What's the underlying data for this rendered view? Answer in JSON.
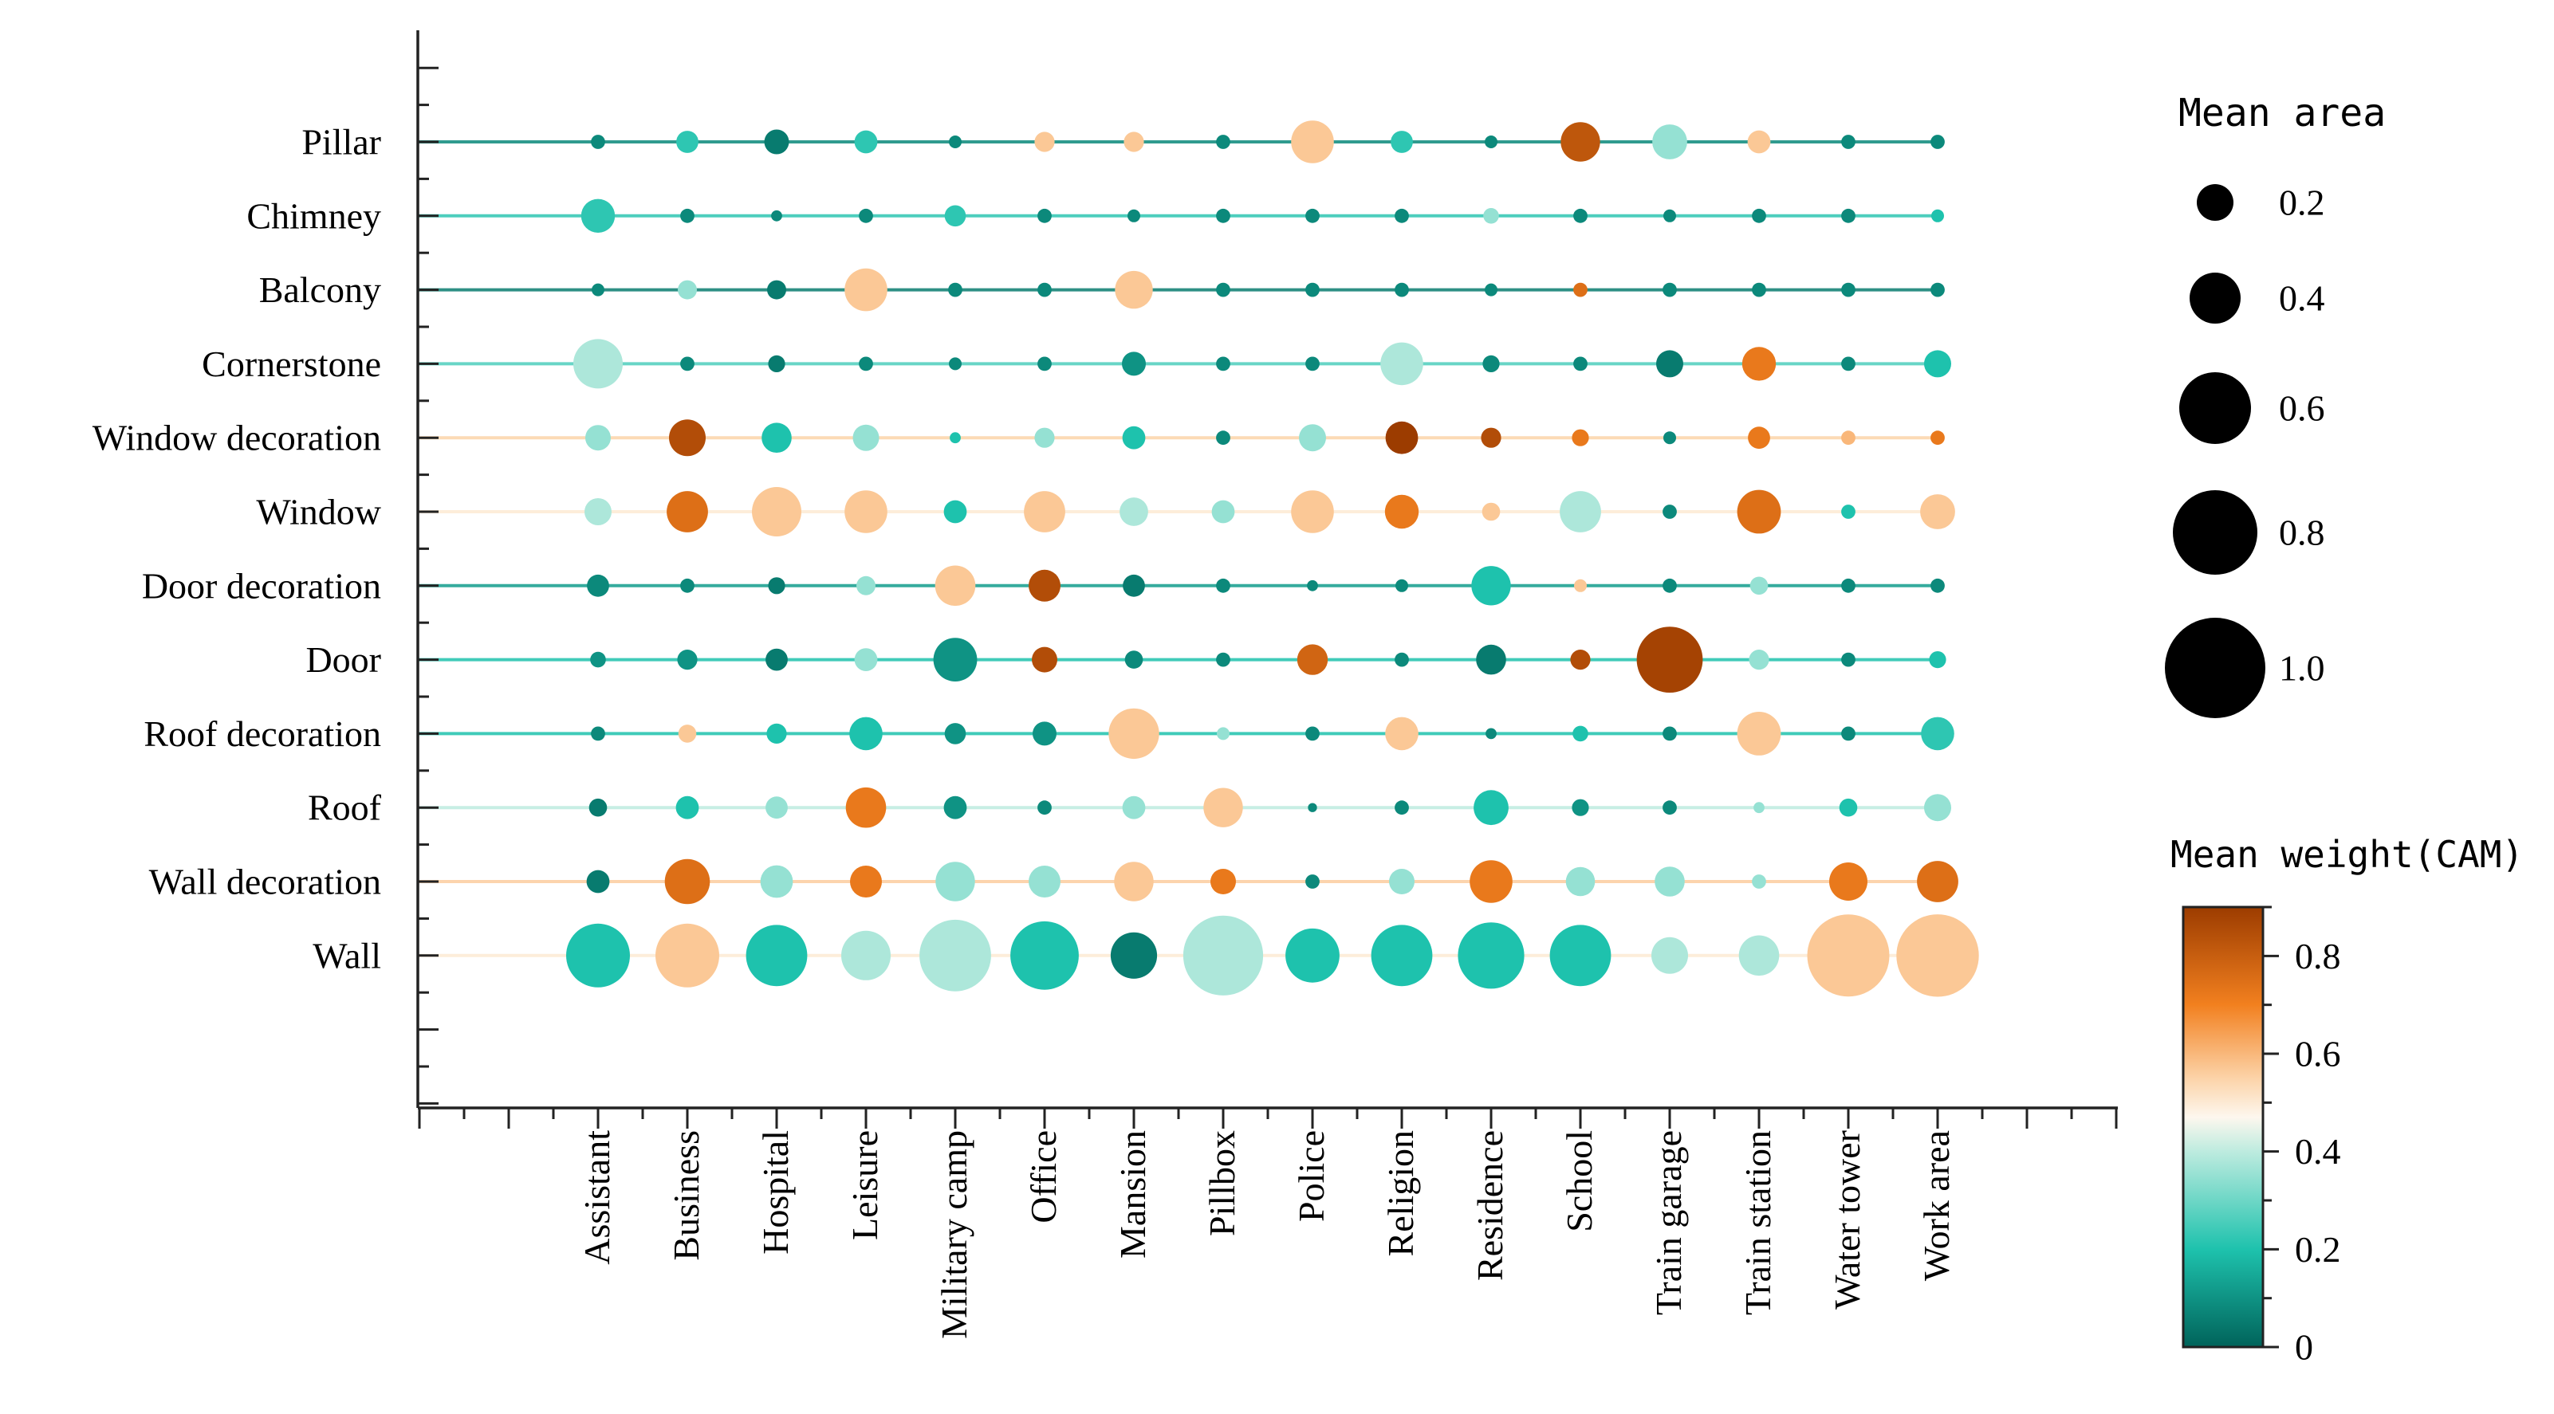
{
  "chart_data": {
    "type": "scatter",
    "subtype": "bubble-matrix",
    "x_categories": [
      "Assistant",
      "Business",
      "Hospital",
      "Leisure",
      "Military camp",
      "Office",
      "Mansion",
      "Pillbox",
      "Police",
      "Religion",
      "Residence",
      "School",
      "Train garage",
      "Train station",
      "Water tower",
      "Work area"
    ],
    "y_categories": [
      "Pillar",
      "Chimney",
      "Balcony",
      "Cornerstone",
      "Window decoration",
      "Window",
      "Door decoration",
      "Door",
      "Roof decoration",
      "Roof",
      "Wall decoration",
      "Wall"
    ],
    "size_legend": {
      "title": "Mean area",
      "values": [
        0.2,
        0.4,
        0.6,
        0.8,
        1.0
      ],
      "labels": [
        "0.2",
        "0.4",
        "0.6",
        "0.8",
        "1.0"
      ]
    },
    "color_legend": {
      "title": "Mean weight(CAM)",
      "range": [
        0,
        0.9
      ],
      "ticks": [
        0,
        0.2,
        0.4,
        0.6,
        0.8
      ],
      "tick_labels": [
        "0",
        "0.2",
        "0.4",
        "0.6",
        "0.8"
      ],
      "stops": [
        {
          "v": 0.0,
          "c": "#00635a"
        },
        {
          "v": 0.2,
          "c": "#1ec2ad"
        },
        {
          "v": 0.4,
          "c": "#bdebdf"
        },
        {
          "v": 0.47,
          "c": "#fdf7ee"
        },
        {
          "v": 0.55,
          "c": "#fcd3a8"
        },
        {
          "v": 0.7,
          "c": "#f2801f"
        },
        {
          "v": 0.9,
          "c": "#9c3c00"
        }
      ]
    },
    "row_line_weights": [
      0.08,
      0.22,
      0.05,
      0.26,
      0.55,
      0.5,
      0.12,
      0.2,
      0.2,
      0.4,
      0.56,
      0.5
    ],
    "cells": {
      "area": [
        [
          0.05,
          0.12,
          0.15,
          0.13,
          0.04,
          0.1,
          0.1,
          0.05,
          0.45,
          0.12,
          0.04,
          0.38,
          0.3,
          0.13,
          0.05,
          0.05
        ],
        [
          0.28,
          0.05,
          0.03,
          0.05,
          0.11,
          0.05,
          0.04,
          0.05,
          0.05,
          0.05,
          0.06,
          0.05,
          0.04,
          0.05,
          0.05,
          0.04
        ],
        [
          0.04,
          0.09,
          0.09,
          0.45,
          0.05,
          0.05,
          0.35,
          0.05,
          0.05,
          0.05,
          0.04,
          0.05,
          0.05,
          0.05,
          0.05,
          0.05
        ],
        [
          0.6,
          0.05,
          0.07,
          0.05,
          0.04,
          0.05,
          0.14,
          0.05,
          0.05,
          0.45,
          0.07,
          0.05,
          0.18,
          0.28,
          0.05,
          0.18
        ],
        [
          0.16,
          0.33,
          0.22,
          0.17,
          0.03,
          0.1,
          0.13,
          0.05,
          0.18,
          0.26,
          0.1,
          0.07,
          0.04,
          0.12,
          0.05,
          0.05
        ],
        [
          0.18,
          0.42,
          0.6,
          0.45,
          0.13,
          0.42,
          0.2,
          0.13,
          0.45,
          0.28,
          0.08,
          0.42,
          0.05,
          0.47,
          0.05,
          0.3
        ],
        [
          0.12,
          0.05,
          0.07,
          0.09,
          0.4,
          0.25,
          0.12,
          0.05,
          0.03,
          0.04,
          0.38,
          0.04,
          0.05,
          0.08,
          0.05,
          0.05
        ],
        [
          0.06,
          0.1,
          0.12,
          0.13,
          0.47,
          0.16,
          0.08,
          0.05,
          0.23,
          0.05,
          0.22,
          0.1,
          1.07,
          0.1,
          0.05,
          0.07
        ],
        [
          0.05,
          0.08,
          0.1,
          0.27,
          0.11,
          0.14,
          0.63,
          0.04,
          0.05,
          0.27,
          0.03,
          0.06,
          0.05,
          0.47,
          0.05,
          0.27
        ],
        [
          0.08,
          0.13,
          0.12,
          0.4,
          0.13,
          0.05,
          0.13,
          0.38,
          0.02,
          0.05,
          0.3,
          0.07,
          0.05,
          0.03,
          0.08,
          0.18
        ],
        [
          0.13,
          0.5,
          0.26,
          0.25,
          0.38,
          0.25,
          0.38,
          0.16,
          0.05,
          0.16,
          0.45,
          0.21,
          0.22,
          0.05,
          0.36,
          0.42
        ],
        [
          1.0,
          1.0,
          0.92,
          0.6,
          1.26,
          1.15,
          0.53,
          1.57,
          0.72,
          0.92,
          1.08,
          0.92,
          0.33,
          0.4,
          1.66,
          1.67
        ]
      ],
      "weight": [
        [
          0.08,
          0.22,
          0.05,
          0.22,
          0.08,
          0.57,
          0.57,
          0.08,
          0.57,
          0.22,
          0.08,
          0.82,
          0.35,
          0.57,
          0.08,
          0.08
        ],
        [
          0.22,
          0.08,
          0.08,
          0.08,
          0.22,
          0.08,
          0.08,
          0.08,
          0.08,
          0.08,
          0.35,
          0.08,
          0.08,
          0.08,
          0.08,
          0.2
        ],
        [
          0.08,
          0.35,
          0.05,
          0.57,
          0.08,
          0.08,
          0.57,
          0.08,
          0.08,
          0.08,
          0.08,
          0.75,
          0.08,
          0.08,
          0.08,
          0.08
        ],
        [
          0.38,
          0.08,
          0.05,
          0.08,
          0.08,
          0.08,
          0.1,
          0.08,
          0.08,
          0.38,
          0.08,
          0.08,
          0.05,
          0.72,
          0.08,
          0.2
        ],
        [
          0.35,
          0.85,
          0.2,
          0.35,
          0.2,
          0.35,
          0.2,
          0.08,
          0.35,
          0.9,
          0.85,
          0.72,
          0.08,
          0.72,
          0.6,
          0.72
        ],
        [
          0.38,
          0.75,
          0.57,
          0.57,
          0.2,
          0.57,
          0.38,
          0.35,
          0.57,
          0.72,
          0.57,
          0.38,
          0.08,
          0.75,
          0.2,
          0.57
        ],
        [
          0.08,
          0.08,
          0.05,
          0.35,
          0.57,
          0.85,
          0.05,
          0.08,
          0.08,
          0.08,
          0.2,
          0.57,
          0.08,
          0.35,
          0.08,
          0.08
        ],
        [
          0.1,
          0.1,
          0.05,
          0.35,
          0.1,
          0.85,
          0.08,
          0.08,
          0.78,
          0.08,
          0.05,
          0.85,
          0.88,
          0.35,
          0.08,
          0.2
        ],
        [
          0.08,
          0.57,
          0.2,
          0.2,
          0.1,
          0.1,
          0.57,
          0.35,
          0.08,
          0.57,
          0.08,
          0.2,
          0.08,
          0.57,
          0.08,
          0.22
        ],
        [
          0.05,
          0.2,
          0.35,
          0.72,
          0.1,
          0.08,
          0.35,
          0.57,
          0.08,
          0.08,
          0.2,
          0.1,
          0.08,
          0.35,
          0.2,
          0.35
        ],
        [
          0.05,
          0.75,
          0.35,
          0.72,
          0.35,
          0.35,
          0.57,
          0.72,
          0.08,
          0.35,
          0.72,
          0.35,
          0.35,
          0.35,
          0.72,
          0.75
        ],
        [
          0.2,
          0.57,
          0.2,
          0.38,
          0.38,
          0.2,
          0.05,
          0.38,
          0.2,
          0.2,
          0.2,
          0.2,
          0.38,
          0.38,
          0.57,
          0.57
        ]
      ]
    }
  }
}
